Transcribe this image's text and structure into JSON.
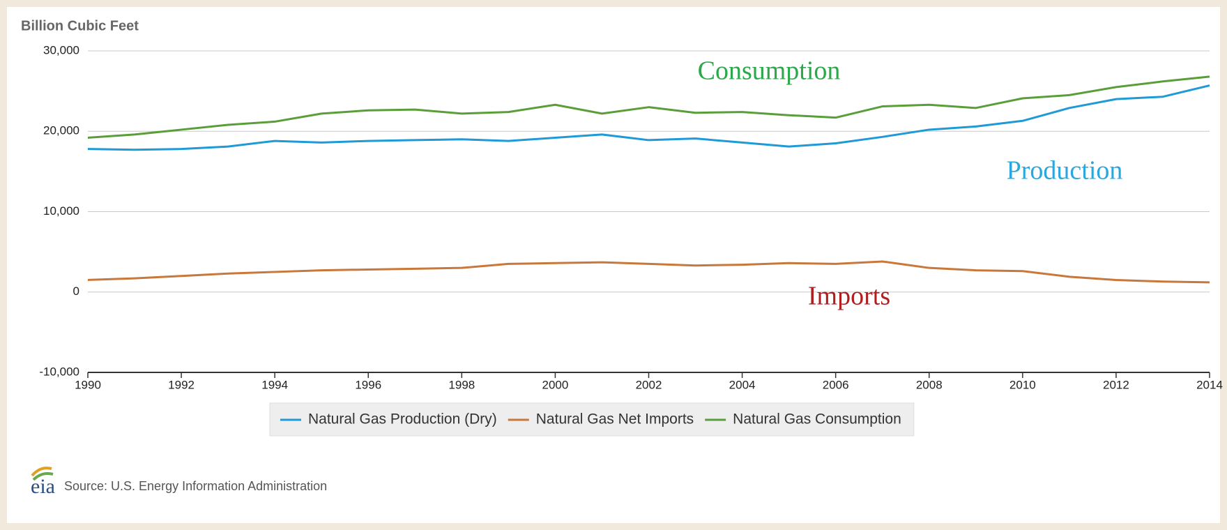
{
  "chart_data": {
    "type": "line",
    "axis_label": "Billion Cubic Feet",
    "x": [
      1990,
      1991,
      1992,
      1993,
      1994,
      1995,
      1996,
      1997,
      1998,
      1999,
      2000,
      2001,
      2002,
      2003,
      2004,
      2005,
      2006,
      2007,
      2008,
      2009,
      2010,
      2011,
      2012,
      2013,
      2014
    ],
    "series": [
      {
        "name": "Natural Gas Production (Dry)",
        "color": "#1f9ad6",
        "values": [
          17800,
          17700,
          17800,
          18100,
          18800,
          18600,
          18800,
          18900,
          19000,
          18800,
          19200,
          19600,
          18900,
          19100,
          18600,
          18100,
          18500,
          19300,
          20200,
          20600,
          21300,
          22900,
          24000,
          24300,
          25700
        ]
      },
      {
        "name": "Natural Gas Net Imports",
        "color": "#c8783a",
        "values": [
          1500,
          1700,
          2000,
          2300,
          2500,
          2700,
          2800,
          2900,
          3000,
          3500,
          3600,
          3700,
          3500,
          3300,
          3400,
          3600,
          3500,
          3800,
          3000,
          2700,
          2600,
          1900,
          1500,
          1300,
          1200
        ]
      },
      {
        "name": "Natural Gas Consumption",
        "color": "#5a9e3a",
        "values": [
          19200,
          19600,
          20200,
          20800,
          21200,
          22200,
          22600,
          22700,
          22200,
          22400,
          23300,
          22200,
          23000,
          22300,
          22400,
          22000,
          21700,
          23100,
          23300,
          22900,
          24100,
          24500,
          25500,
          26200,
          26800
        ]
      }
    ],
    "xlim": [
      1990,
      2014
    ],
    "xticks": [
      1990,
      1992,
      1994,
      1996,
      1998,
      2000,
      2002,
      2004,
      2006,
      2008,
      2010,
      2012,
      2014
    ],
    "ylim": [
      -10000,
      30000
    ],
    "yticks": [
      {
        "value": -10000,
        "label": "-10,000"
      },
      0,
      {
        "value": 10000,
        "label": "10,000"
      },
      {
        "value": 20000,
        "label": "20,000"
      },
      {
        "value": 30000,
        "label": "30,000"
      }
    ],
    "grid": true,
    "annotations": [
      {
        "text": "Consumption",
        "color": "#2aa84a"
      },
      {
        "text": "Production",
        "color": "#2aa7dc"
      },
      {
        "text": "Imports",
        "color": "#b01f1f"
      }
    ],
    "logo": "eia",
    "source": "Source: U.S. Energy Information Administration"
  }
}
